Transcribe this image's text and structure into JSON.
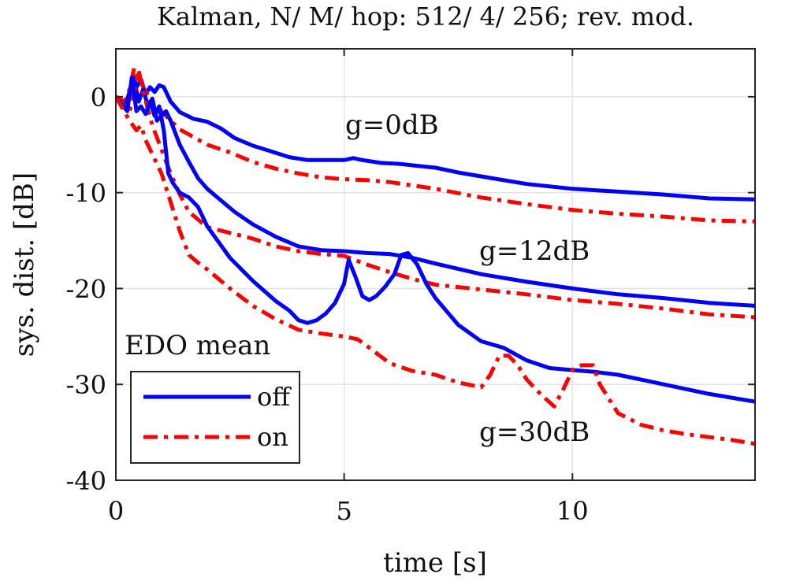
{
  "chart_data": {
    "type": "line",
    "title": "Kalman, N/ M/ hop: 512/ 4/ 256; rev. mod.",
    "xlabel": "time [s]",
    "ylabel": "sys. dist. [dB]",
    "xlim": [
      0,
      14
    ],
    "ylim": [
      -40,
      5
    ],
    "xticks": [
      0,
      5,
      10
    ],
    "yticks": [
      0,
      -10,
      -20,
      -30,
      -40
    ],
    "grid": true,
    "legend": {
      "title": "EDO mean",
      "placement": "bottom-left",
      "entries": [
        {
          "label": "off",
          "color": "#0000ff",
          "style": "solid"
        },
        {
          "label": "on",
          "color": "#ff0000",
          "style": "dashdot"
        }
      ]
    },
    "annotations": [
      {
        "text": "g=0dB",
        "x": 5.0,
        "y": -3.0
      },
      {
        "text": "g=12dB",
        "x": 8.1,
        "y": -16.0
      },
      {
        "text": "g=30dB",
        "x": 7.9,
        "y": -35.0
      }
    ],
    "series": [
      {
        "group": "g=0dB",
        "edo": "off",
        "color": "#0000ff",
        "style": "solid",
        "x": [
          0,
          0.2,
          0.3,
          0.38,
          0.45,
          0.55,
          0.65,
          0.75,
          0.85,
          0.95,
          1.05,
          1.2,
          1.4,
          1.7,
          2.0,
          2.3,
          2.6,
          3.0,
          3.4,
          3.8,
          4.2,
          4.6,
          5.0,
          5.2,
          5.4,
          5.8,
          6.2,
          6.6,
          7.0,
          7.5,
          8.0,
          9.0,
          10.0,
          11.0,
          12.0,
          13.0,
          14.0
        ],
        "y": [
          0,
          -1.0,
          0.5,
          2.3,
          1.0,
          1.8,
          0.3,
          1.0,
          0.5,
          1.2,
          1.0,
          -0.5,
          -1.6,
          -2.3,
          -2.6,
          -3.3,
          -4.3,
          -5.1,
          -5.7,
          -6.3,
          -6.6,
          -6.6,
          -6.6,
          -6.4,
          -6.6,
          -6.9,
          -7.0,
          -7.2,
          -7.4,
          -7.9,
          -8.3,
          -9.1,
          -9.6,
          -9.9,
          -10.2,
          -10.6,
          -10.7
        ]
      },
      {
        "group": "g=0dB",
        "edo": "on",
        "color": "#ff0000",
        "style": "dashdot",
        "x": [
          0,
          0.2,
          0.3,
          0.4,
          0.45,
          0.55,
          0.65,
          0.8,
          1.0,
          1.2,
          1.4,
          1.7,
          2.0,
          2.5,
          3.0,
          3.5,
          4.0,
          4.5,
          5.0,
          5.5,
          6.0,
          7.0,
          8.0,
          9.0,
          10.0,
          11.0,
          12.0,
          13.0,
          14.0
        ],
        "y": [
          0,
          -0.5,
          0.8,
          3.0,
          2.6,
          1.5,
          0.5,
          -0.5,
          -1.5,
          -2.5,
          -3.4,
          -4.2,
          -5.0,
          -5.8,
          -6.8,
          -7.5,
          -8.0,
          -8.4,
          -8.6,
          -8.7,
          -8.9,
          -9.6,
          -10.5,
          -11.2,
          -11.8,
          -12.2,
          -12.5,
          -12.9,
          -13.0
        ]
      },
      {
        "group": "g=12dB",
        "edo": "off",
        "color": "#0000ff",
        "style": "solid",
        "x": [
          0,
          0.2,
          0.3,
          0.4,
          0.5,
          0.6,
          0.7,
          0.8,
          0.9,
          1.0,
          1.1,
          1.2,
          1.4,
          1.6,
          1.8,
          2.0,
          2.3,
          2.6,
          3.0,
          3.5,
          4.0,
          4.5,
          5.0,
          5.5,
          6.0,
          6.5,
          7.0,
          8.0,
          9.0,
          10.0,
          11.0,
          12.0,
          13.0,
          14.0
        ],
        "y": [
          0,
          -1.0,
          0.5,
          1.8,
          -0.5,
          0.8,
          -1.0,
          -0.2,
          -2.5,
          -2.0,
          -1.5,
          -2.5,
          -5.0,
          -6.8,
          -8.5,
          -9.6,
          -10.8,
          -12.0,
          -13.3,
          -14.6,
          -15.6,
          -16.0,
          -16.1,
          -16.3,
          -16.4,
          -16.8,
          -17.4,
          -18.5,
          -19.3,
          -20.0,
          -20.6,
          -21.0,
          -21.5,
          -21.8
        ]
      },
      {
        "group": "g=12dB",
        "edo": "on",
        "color": "#ff0000",
        "style": "dashdot",
        "x": [
          0,
          0.3,
          0.4,
          0.5,
          0.6,
          0.8,
          1.0,
          1.2,
          1.4,
          1.6,
          1.8,
          2.0,
          2.5,
          3.0,
          3.5,
          4.0,
          4.5,
          5.0,
          5.5,
          6.0,
          6.5,
          7.0,
          8.0,
          9.0,
          10.0,
          11.0,
          12.0,
          13.0,
          14.0
        ],
        "y": [
          0,
          -1.5,
          0.5,
          2.7,
          0.5,
          -3.0,
          -5.5,
          -8.0,
          -10.2,
          -12.0,
          -12.8,
          -13.6,
          -14.2,
          -14.8,
          -15.6,
          -16.1,
          -16.4,
          -16.6,
          -17.5,
          -18.3,
          -19.0,
          -19.6,
          -20.1,
          -20.6,
          -21.2,
          -21.6,
          -22.1,
          -22.7,
          -23.0
        ]
      },
      {
        "group": "g=30dB",
        "edo": "off",
        "color": "#0000ff",
        "style": "solid",
        "x": [
          0,
          0.25,
          0.35,
          0.45,
          0.55,
          0.65,
          0.75,
          0.85,
          0.95,
          1.05,
          1.15,
          1.25,
          1.4,
          1.6,
          1.8,
          2.0,
          2.5,
          3.0,
          3.5,
          3.8,
          4.0,
          4.2,
          4.4,
          4.6,
          4.8,
          5.0,
          5.1,
          5.25,
          5.4,
          5.55,
          5.7,
          5.9,
          6.1,
          6.25,
          6.4,
          6.6,
          6.8,
          7.0,
          7.5,
          8.0,
          8.5,
          9.0,
          9.5,
          10.0,
          10.5,
          11.0,
          11.5,
          12.0,
          12.5,
          13.0,
          14.0
        ],
        "y": [
          0,
          -1.5,
          2.0,
          -1.5,
          -1.0,
          -1.8,
          -0.5,
          -2.0,
          -1.0,
          -3.5,
          -8.0,
          -9.0,
          -10.0,
          -10.5,
          -11.5,
          -13.5,
          -16.8,
          -19.2,
          -21.3,
          -22.3,
          -23.3,
          -23.6,
          -23.3,
          -22.6,
          -21.5,
          -19.5,
          -17.0,
          -18.8,
          -20.8,
          -21.2,
          -20.8,
          -19.8,
          -18.5,
          -16.5,
          -16.3,
          -17.5,
          -19.5,
          -21.0,
          -23.8,
          -25.5,
          -26.2,
          -27.5,
          -28.3,
          -28.5,
          -28.7,
          -29.0,
          -29.5,
          -30.0,
          -30.5,
          -31.0,
          -31.8
        ]
      },
      {
        "group": "g=30dB",
        "edo": "on",
        "color": "#ff0000",
        "style": "dashdot",
        "x": [
          0,
          0.3,
          0.45,
          0.55,
          0.65,
          0.8,
          1.0,
          1.2,
          1.4,
          1.6,
          1.8,
          2.0,
          2.5,
          3.0,
          3.5,
          4.0,
          4.5,
          5.0,
          5.3,
          5.5,
          6.0,
          6.5,
          7.0,
          7.5,
          8.0,
          8.2,
          8.4,
          8.6,
          8.8,
          9.0,
          9.3,
          9.6,
          9.8,
          10.0,
          10.2,
          10.45,
          10.6,
          10.8,
          11.0,
          11.5,
          12.0,
          12.5,
          13.0,
          13.5,
          14.0
        ],
        "y": [
          0,
          -2.5,
          -3.5,
          -3.0,
          -4.5,
          -6.0,
          -8.0,
          -11.0,
          -14.0,
          -16.5,
          -17.3,
          -18.0,
          -20.0,
          -21.8,
          -23.2,
          -24.3,
          -24.7,
          -25.0,
          -25.3,
          -26.0,
          -27.8,
          -28.6,
          -29.0,
          -29.8,
          -30.3,
          -29.0,
          -27.0,
          -27.0,
          -28.0,
          -29.5,
          -31.0,
          -32.3,
          -30.5,
          -28.5,
          -28.0,
          -28.0,
          -30.0,
          -31.5,
          -33.0,
          -34.2,
          -34.8,
          -35.2,
          -35.5,
          -35.8,
          -36.2
        ]
      }
    ]
  }
}
